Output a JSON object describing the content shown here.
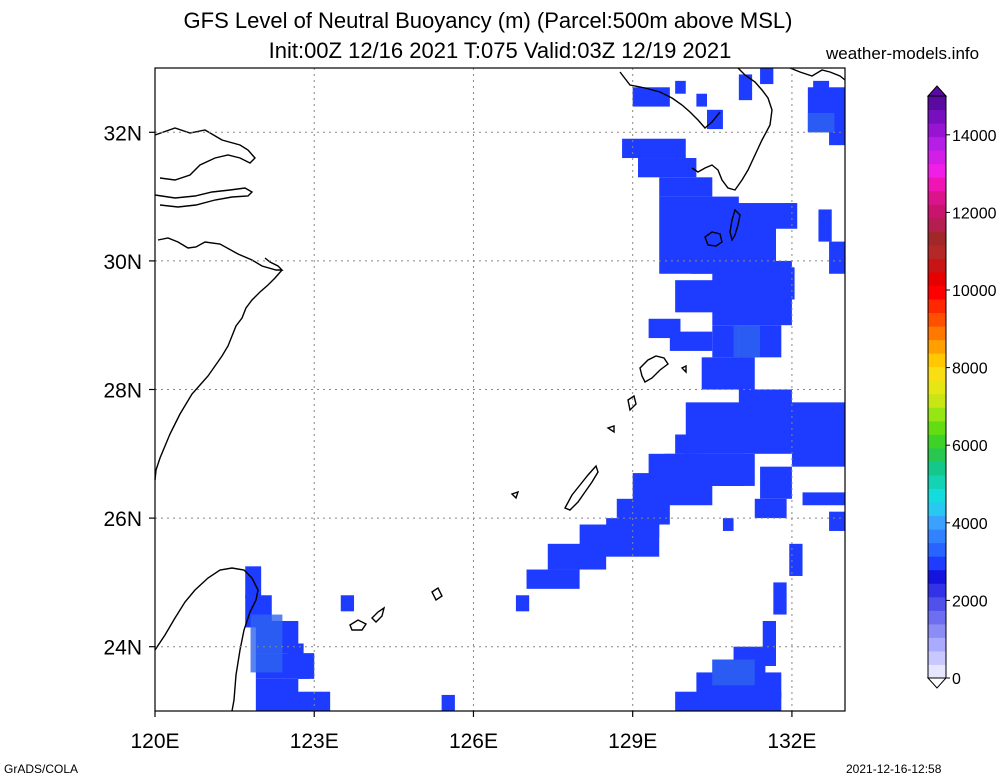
{
  "title_line1": "GFS Level of Neutral Buoyancy (m) (Parcel:500m above MSL)",
  "title_line2": "Init:00Z 12/16 2021 T:075 Valid:03Z 12/19 2021",
  "site": "weather-models.info",
  "footer_left": "GrADS/COLA",
  "footer_right": "2021-12-16-12:58",
  "map": {
    "lon_range": [
      120,
      133
    ],
    "lat_range": [
      23,
      33
    ],
    "lon_ticks": [
      {
        "value": 120,
        "label": "120E"
      },
      {
        "value": 123,
        "label": "123E"
      },
      {
        "value": 126,
        "label": "126E"
      },
      {
        "value": 129,
        "label": "129E"
      },
      {
        "value": 132,
        "label": "132E"
      }
    ],
    "lat_ticks": [
      {
        "value": 24,
        "label": "24N"
      },
      {
        "value": 26,
        "label": "26N"
      },
      {
        "value": 28,
        "label": "28N"
      },
      {
        "value": 30,
        "label": "30N"
      },
      {
        "value": 32,
        "label": "32N"
      }
    ],
    "grid_lons": [
      120,
      123,
      126,
      129,
      132
    ],
    "grid_lats": [
      24,
      26,
      28,
      30,
      32
    ],
    "field_color": "#1e3cff",
    "field_color_light": "#2d64f0",
    "field_color_lighter": "#3c8cf0",
    "cells": [
      [
        128.8,
        31.6,
        1.2,
        0.3
      ],
      [
        129.1,
        31.3,
        1.1,
        0.3
      ],
      [
        129.5,
        31.0,
        1.0,
        0.3
      ],
      [
        129.5,
        29.8,
        1.5,
        1.2
      ],
      [
        130.1,
        29.8,
        1.6,
        0.8
      ],
      [
        130.5,
        30.5,
        1.6,
        0.4
      ],
      [
        131.0,
        30.0,
        0.6,
        0.8
      ],
      [
        130.9,
        29.5,
        0.7,
        0.3
      ],
      [
        129.8,
        29.2,
        0.8,
        0.5
      ],
      [
        130.5,
        29.0,
        1.5,
        1.0
      ],
      [
        131.0,
        28.5,
        0.8,
        0.5
      ],
      [
        129.3,
        28.8,
        0.6,
        0.3
      ],
      [
        129.7,
        28.6,
        0.8,
        0.3
      ],
      [
        130.5,
        28.5,
        0.5,
        0.5
      ],
      [
        130.3,
        28.0,
        1.0,
        0.5
      ],
      [
        131.0,
        27.5,
        1.0,
        0.5
      ],
      [
        130.0,
        27.0,
        3.0,
        0.8
      ],
      [
        132.0,
        26.8,
        1.0,
        0.9
      ],
      [
        129.8,
        27.0,
        0.5,
        0.3
      ],
      [
        129.6,
        26.7,
        0.5,
        0.3
      ],
      [
        129.3,
        26.5,
        1.8,
        0.5
      ],
      [
        129.0,
        26.2,
        1.5,
        0.5
      ],
      [
        128.7,
        25.9,
        1.0,
        0.4
      ],
      [
        128.5,
        25.7,
        1.0,
        0.3
      ],
      [
        128.0,
        25.4,
        1.5,
        0.5
      ],
      [
        127.4,
        25.2,
        1.1,
        0.4
      ],
      [
        127.0,
        24.9,
        1.0,
        0.3
      ],
      [
        130.3,
        26.5,
        1.0,
        0.5
      ],
      [
        131.3,
        26.0,
        0.6,
        0.3
      ],
      [
        130.7,
        25.8,
        0.2,
        0.2
      ],
      [
        131.4,
        26.3,
        0.6,
        0.5
      ],
      [
        132.2,
        26.2,
        0.8,
        0.2
      ],
      [
        132.7,
        25.8,
        0.3,
        0.3
      ],
      [
        131.95,
        25.1,
        0.25,
        0.5
      ],
      [
        131.65,
        24.5,
        0.25,
        0.5
      ],
      [
        131.45,
        23.9,
        0.25,
        0.5
      ],
      [
        130.9,
        23.7,
        0.8,
        0.3
      ],
      [
        130.5,
        23.5,
        1.0,
        0.3
      ],
      [
        130.2,
        23.2,
        1.6,
        0.4
      ],
      [
        129.8,
        23.0,
        2.0,
        0.3
      ],
      [
        121.7,
        24.75,
        0.3,
        0.5
      ],
      [
        121.7,
        24.3,
        0.5,
        0.5
      ],
      [
        121.9,
        23.9,
        0.8,
        0.5
      ],
      [
        121.9,
        23.5,
        1.1,
        0.4
      ],
      [
        121.9,
        23.0,
        0.8,
        0.5
      ],
      [
        122.4,
        23.0,
        0.9,
        0.3
      ],
      [
        122.5,
        23.75,
        0.3,
        0.3
      ],
      [
        122.7,
        23.5,
        0.2,
        0.25
      ],
      [
        123.5,
        24.55,
        0.25,
        0.25
      ],
      [
        125.4,
        23.0,
        0.25,
        0.25
      ],
      [
        126.8,
        24.55,
        0.25,
        0.25
      ],
      [
        129.0,
        32.4,
        0.7,
        0.3
      ],
      [
        129.8,
        32.6,
        0.2,
        0.2
      ],
      [
        130.2,
        32.4,
        0.2,
        0.2
      ],
      [
        130.4,
        32.05,
        0.3,
        0.3
      ],
      [
        131.0,
        32.5,
        0.25,
        0.4
      ],
      [
        131.4,
        32.75,
        0.25,
        0.25
      ],
      [
        132.3,
        32.0,
        0.8,
        0.7
      ],
      [
        132.4,
        32.5,
        0.3,
        0.3
      ],
      [
        132.7,
        31.8,
        0.3,
        0.3
      ],
      [
        132.5,
        30.3,
        0.25,
        0.5
      ],
      [
        132.7,
        29.8,
        0.3,
        0.5
      ],
      [
        131.8,
        29.4,
        0.25,
        0.5
      ]
    ],
    "light_patches": [
      [
        130.9,
        28.5,
        0.5,
        0.5
      ],
      [
        121.8,
        23.6,
        0.6,
        0.9
      ],
      [
        130.5,
        23.4,
        0.8,
        0.4
      ],
      [
        132.3,
        32.0,
        0.5,
        0.3
      ]
    ]
  },
  "colorbar": {
    "labels": [
      "0",
      "2000",
      "4000",
      "6000",
      "8000",
      "10000",
      "12000",
      "14000"
    ],
    "colors": [
      "#e6e6ff",
      "#c8c8ff",
      "#aaaaff",
      "#8c8cf5",
      "#6e6ef0",
      "#5050eb",
      "#3232e6",
      "#1414dc",
      "#1e3cff",
      "#2864ff",
      "#3282ff",
      "#3ca0ff",
      "#28c8f0",
      "#14dcdc",
      "#14d2b4",
      "#14c88c",
      "#28c850",
      "#3cd228",
      "#64dc14",
      "#96e614",
      "#c8e614",
      "#e6e614",
      "#fade14",
      "#ffc800",
      "#ffa000",
      "#ff7800",
      "#ff5000",
      "#ff2800",
      "#ff0000",
      "#e60000",
      "#c81414",
      "#b42828",
      "#a02828",
      "#b41e50",
      "#c8146e",
      "#dc148c",
      "#f014b4",
      "#f01ee6",
      "#d21ee6",
      "#b41ee6",
      "#9614d2",
      "#780fbe",
      "#5a0aa0"
    ]
  }
}
